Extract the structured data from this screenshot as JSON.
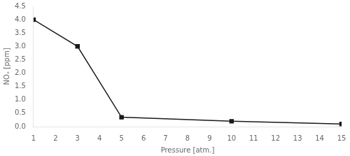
{
  "chart_data": {
    "type": "line",
    "x": [
      1,
      3,
      5,
      10,
      15
    ],
    "values": [
      4.0,
      3.0,
      0.35,
      0.2,
      0.1
    ],
    "xlabel": "Pressure [atm.]",
    "ylabel": "NOₓ [ppm]",
    "xlim": [
      1,
      15
    ],
    "ylim": [
      0.0,
      4.5
    ],
    "xticks": [
      1,
      2,
      3,
      4,
      5,
      6,
      7,
      8,
      9,
      10,
      11,
      12,
      13,
      14,
      15
    ],
    "yticks": [
      {
        "value": 0,
        "label": "0.0"
      },
      0.5,
      {
        "value": 1,
        "label": "1.0"
      },
      1.5,
      {
        "value": 2,
        "label": "2.0"
      },
      2.5,
      {
        "value": 3,
        "label": "3.0"
      },
      3.5,
      {
        "value": 4,
        "label": "4.0"
      },
      4.5
    ],
    "color": "#1a1a1a",
    "marker": "square",
    "grid": false
  }
}
